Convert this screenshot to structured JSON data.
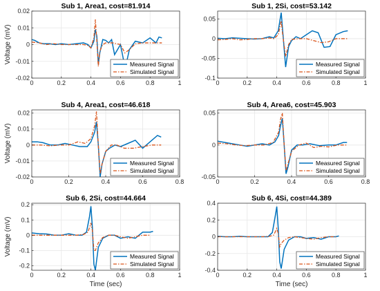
{
  "figure": {
    "xlabel": "Time (sec)",
    "ylabel": "Voltage (mV)"
  },
  "colors": {
    "measured": "#0072BD",
    "simulated": "#D95319",
    "grid": "#e6e6e6",
    "axis": "#262626"
  },
  "chart_data": [
    {
      "type": "line",
      "title": "Sub 1, Area1, cost=81.914",
      "ylabel": "Voltage (mV)",
      "xlabel": "",
      "xlim": [
        0,
        1
      ],
      "ylim": [
        -0.02,
        0.02
      ],
      "xticks": [
        "0",
        "0.2",
        "0.4",
        "0.6",
        "0.8",
        "1"
      ],
      "yticks": [
        "-0.02",
        "-0.01",
        "0",
        "0.01",
        "0.02"
      ],
      "legend": {
        "location": "bottom-right",
        "entries": [
          "Measured Signal",
          "Simulated Signal"
        ]
      },
      "grid": true,
      "series": [
        {
          "name": "Measured Signal",
          "style": "solid",
          "x": [
            0,
            0.02,
            0.05,
            0.08,
            0.12,
            0.16,
            0.2,
            0.25,
            0.3,
            0.35,
            0.38,
            0.4,
            0.42,
            0.43,
            0.44,
            0.45,
            0.46,
            0.48,
            0.5,
            0.52,
            0.54,
            0.56,
            0.58,
            0.6,
            0.62,
            0.64,
            0.66,
            0.7,
            0.75,
            0.8,
            0.84,
            0.86,
            0.88
          ],
          "y": [
            0.003,
            0.0025,
            0.001,
            0.0005,
            0.0005,
            0.0,
            0.0005,
            0.0,
            0.0005,
            0.001,
            0.0,
            -0.002,
            0.002,
            0.009,
            0.005,
            -0.012,
            -0.005,
            0.003,
            0.0025,
            0.001,
            0.003,
            -0.006,
            -0.003,
            0.0,
            -0.009,
            -0.011,
            -0.003,
            0.002,
            0.001,
            0.004,
            0.001,
            0.0045,
            0.004
          ]
        },
        {
          "name": "Simulated Signal",
          "style": "dashdot",
          "x": [
            0,
            0.05,
            0.1,
            0.15,
            0.2,
            0.25,
            0.3,
            0.35,
            0.38,
            0.4,
            0.42,
            0.43,
            0.44,
            0.45,
            0.46,
            0.48,
            0.5,
            0.55,
            0.6,
            0.63,
            0.66,
            0.7,
            0.75,
            0.8,
            0.85,
            0.88
          ],
          "y": [
            0.0015,
            0.001,
            0.0,
            0.0005,
            0.0,
            0.0,
            0.0,
            0.0,
            -0.0005,
            -0.002,
            0.004,
            0.015,
            0.002,
            -0.013,
            -0.004,
            0.0,
            0.001,
            0.001,
            0.0,
            -0.005,
            -0.003,
            0.0005,
            0.001,
            0.001,
            0.001,
            0.001
          ]
        }
      ]
    },
    {
      "type": "line",
      "title": "Sub 1, 2Si, cost=53.142",
      "ylabel": "",
      "xlabel": "",
      "xlim": [
        0,
        1
      ],
      "ylim": [
        -0.1,
        0.07
      ],
      "xticks": [
        "0",
        "0.2",
        "0.4",
        "0.6",
        "0.8",
        "1"
      ],
      "yticks": [
        "-0.1",
        "-0.05",
        "0",
        "0.05"
      ],
      "legend": {
        "location": "bottom-right",
        "entries": [
          "Measured Signal",
          "Simulated Signal"
        ]
      },
      "grid": true,
      "series": [
        {
          "name": "Measured Signal",
          "style": "solid",
          "x": [
            0,
            0.05,
            0.1,
            0.15,
            0.2,
            0.25,
            0.3,
            0.35,
            0.38,
            0.41,
            0.43,
            0.44,
            0.46,
            0.48,
            0.5,
            0.53,
            0.56,
            0.6,
            0.64,
            0.68,
            0.72,
            0.76,
            0.8,
            0.85,
            0.88
          ],
          "y": [
            0.001,
            0.0,
            0.002,
            0.001,
            0.0,
            -0.001,
            0.0,
            0.005,
            0.002,
            0.02,
            0.066,
            0.02,
            -0.072,
            -0.02,
            -0.005,
            0.005,
            0.0,
            0.01,
            0.02,
            0.015,
            -0.022,
            -0.02,
            0.01,
            0.018,
            0.02
          ]
        },
        {
          "name": "Simulated Signal",
          "style": "dashdot",
          "x": [
            0,
            0.05,
            0.1,
            0.15,
            0.2,
            0.25,
            0.3,
            0.35,
            0.38,
            0.41,
            0.43,
            0.44,
            0.46,
            0.48,
            0.5,
            0.55,
            0.6,
            0.65,
            0.7,
            0.75,
            0.8,
            0.85,
            0.88
          ],
          "y": [
            -0.003,
            -0.002,
            0.0,
            -0.003,
            -0.002,
            0.0,
            0.0,
            0.002,
            0.0,
            0.01,
            0.045,
            0.01,
            -0.045,
            -0.015,
            -0.002,
            0.0,
            0.0,
            -0.005,
            -0.01,
            -0.008,
            0.0,
            0.0,
            0.0
          ]
        }
      ]
    },
    {
      "type": "line",
      "title": "Sub 4, Area1, cost=46.618",
      "ylabel": "Voltage (mV)",
      "xlabel": "",
      "xlim": [
        0,
        0.8
      ],
      "ylim": [
        -0.02,
        0.022
      ],
      "xticks": [
        "0",
        "0.2",
        "0.4",
        "0.6",
        "0.8"
      ],
      "yticks": [
        "-0.02",
        "-0.01",
        "0",
        "0.01",
        "0.02"
      ],
      "legend": {
        "location": "bottom-right",
        "entries": [
          "Measured Signal",
          "Simulated Signal"
        ]
      },
      "grid": true,
      "series": [
        {
          "name": "Measured Signal",
          "style": "solid",
          "x": [
            0,
            0.03,
            0.06,
            0.1,
            0.14,
            0.18,
            0.22,
            0.26,
            0.3,
            0.32,
            0.34,
            0.35,
            0.36,
            0.37,
            0.38,
            0.4,
            0.42,
            0.45,
            0.48,
            0.52,
            0.56,
            0.6,
            0.64,
            0.68,
            0.7
          ],
          "y": [
            0.002,
            0.002,
            0.0015,
            0.0,
            0.0,
            0.001,
            0.0,
            -0.001,
            -0.001,
            0.002,
            0.008,
            0.0145,
            0.0,
            -0.02,
            -0.012,
            -0.004,
            -0.002,
            0.0,
            -0.001,
            0.001,
            0.003,
            -0.002,
            0.002,
            0.006,
            0.005
          ]
        },
        {
          "name": "Simulated Signal",
          "style": "dashdot",
          "x": [
            0,
            0.05,
            0.1,
            0.15,
            0.2,
            0.25,
            0.29,
            0.32,
            0.34,
            0.35,
            0.36,
            0.37,
            0.38,
            0.4,
            0.43,
            0.46,
            0.5,
            0.55,
            0.6,
            0.65,
            0.7
          ],
          "y": [
            0.0,
            0.0,
            -0.0005,
            0.0,
            0.0,
            0.002,
            0.001,
            0.004,
            0.012,
            0.021,
            0.0,
            -0.018,
            -0.012,
            -0.004,
            0.0,
            0.0,
            -0.002,
            -0.002,
            -0.001,
            0.0,
            0.0
          ]
        }
      ]
    },
    {
      "type": "line",
      "title": "Sub 4, Area6, cost=45.903",
      "ylabel": "",
      "xlabel": "",
      "xlim": [
        0,
        0.8
      ],
      "ylim": [
        -0.05,
        0.055
      ],
      "xticks": [
        "0",
        "0.2",
        "0.4",
        "0.6",
        "0.8"
      ],
      "yticks": [
        "-0.05",
        "0",
        "0.05"
      ],
      "legend": {
        "location": "bottom-right",
        "entries": [
          "Measured Signal",
          "Simulated Signal"
        ]
      },
      "grid": true,
      "series": [
        {
          "name": "Measured Signal",
          "style": "solid",
          "x": [
            0,
            0.04,
            0.08,
            0.12,
            0.16,
            0.2,
            0.24,
            0.28,
            0.31,
            0.33,
            0.34,
            0.35,
            0.36,
            0.37,
            0.38,
            0.4,
            0.43,
            0.46,
            0.5,
            0.55,
            0.6,
            0.64,
            0.68,
            0.7
          ],
          "y": [
            0.006,
            0.004,
            0.002,
            0.0,
            -0.002,
            0.0,
            0.002,
            0.0,
            0.005,
            0.015,
            0.03,
            0.042,
            0.0,
            -0.045,
            -0.035,
            -0.008,
            0.0,
            0.0,
            0.002,
            -0.001,
            0.0,
            0.0,
            0.004,
            0.004
          ]
        },
        {
          "name": "Simulated Signal",
          "style": "dashdot",
          "x": [
            0,
            0.05,
            0.1,
            0.15,
            0.2,
            0.25,
            0.3,
            0.33,
            0.34,
            0.35,
            0.36,
            0.37,
            0.38,
            0.4,
            0.44,
            0.48,
            0.52,
            0.56,
            0.6,
            0.65,
            0.7
          ],
          "y": [
            0.003,
            0.002,
            0.0,
            -0.001,
            0.0,
            0.0,
            0.004,
            0.02,
            0.04,
            0.05,
            0.0,
            -0.04,
            -0.03,
            -0.01,
            0.0,
            0.003,
            -0.004,
            -0.002,
            -0.003,
            0.0,
            0.0
          ]
        }
      ]
    },
    {
      "type": "line",
      "title": "Sub 6, 2Si, cost=44.664",
      "ylabel": "Voltage (mV)",
      "xlabel": "Time (sec)",
      "xlim": [
        0,
        1
      ],
      "ylim": [
        -0.23,
        0.21
      ],
      "xticks": [
        "0",
        "0.2",
        "0.4",
        "0.6",
        "0.8",
        "1"
      ],
      "yticks": [
        "-0.2",
        "-0.1",
        "0",
        "0.1",
        "0.2"
      ],
      "legend": {
        "location": "bottom-right",
        "entries": [
          "Measured Signal",
          "Simulated Signal"
        ]
      },
      "grid": true,
      "series": [
        {
          "name": "Measured Signal",
          "style": "solid",
          "x": [
            0,
            0.05,
            0.1,
            0.15,
            0.2,
            0.25,
            0.3,
            0.34,
            0.37,
            0.39,
            0.4,
            0.41,
            0.42,
            0.43,
            0.45,
            0.48,
            0.52,
            0.56,
            0.6,
            0.65,
            0.7,
            0.75,
            0.8,
            0.82
          ],
          "y": [
            0.015,
            0.01,
            0.008,
            0.0,
            0.0,
            0.01,
            0.0,
            0.0,
            0.02,
            0.12,
            0.19,
            0.05,
            -0.19,
            -0.23,
            -0.08,
            -0.02,
            0.0,
            0.0,
            -0.02,
            -0.01,
            -0.02,
            0.02,
            0.02,
            0.025
          ]
        },
        {
          "name": "Simulated Signal",
          "style": "dashdot",
          "x": [
            0,
            0.05,
            0.1,
            0.15,
            0.2,
            0.25,
            0.3,
            0.35,
            0.38,
            0.4,
            0.41,
            0.42,
            0.43,
            0.45,
            0.48,
            0.52,
            0.56,
            0.6,
            0.65,
            0.7,
            0.75,
            0.8
          ],
          "y": [
            0.0,
            0.0,
            0.0,
            0.0,
            0.0,
            0.0,
            0.0,
            0.005,
            0.02,
            0.08,
            0.03,
            -0.1,
            -0.1,
            -0.05,
            -0.015,
            0.0,
            0.0,
            -0.01,
            -0.02,
            -0.01,
            0.0,
            0.0
          ]
        }
      ]
    },
    {
      "type": "line",
      "title": "Sub 6, 4Si, cost=44.389",
      "ylabel": "",
      "xlabel": "Time (sec)",
      "xlim": [
        0,
        1
      ],
      "ylim": [
        -0.4,
        0.4
      ],
      "xticks": [
        "0",
        "0.2",
        "0.4",
        "0.6",
        "0.8",
        "1"
      ],
      "yticks": [
        "-0.4",
        "-0.2",
        "0",
        "0.2",
        "0.4"
      ],
      "legend": {
        "location": "bottom-right",
        "entries": [
          "Measured Signal",
          "Simulated Signal"
        ]
      },
      "grid": true,
      "series": [
        {
          "name": "Measured Signal",
          "style": "solid",
          "x": [
            0,
            0.05,
            0.1,
            0.15,
            0.2,
            0.25,
            0.3,
            0.34,
            0.37,
            0.39,
            0.4,
            0.41,
            0.42,
            0.43,
            0.45,
            0.48,
            0.52,
            0.56,
            0.6,
            0.65,
            0.7,
            0.75,
            0.8,
            0.82
          ],
          "y": [
            0.005,
            0.0,
            0.0,
            0.005,
            0.0,
            0.0,
            0.0,
            0.0,
            0.05,
            0.25,
            0.36,
            0.1,
            -0.3,
            -0.38,
            -0.15,
            -0.04,
            0.0,
            0.0,
            -0.02,
            -0.01,
            -0.03,
            0.0,
            0.0,
            0.01
          ]
        },
        {
          "name": "Simulated Signal",
          "style": "dashdot",
          "x": [
            0,
            0.05,
            0.1,
            0.15,
            0.2,
            0.25,
            0.3,
            0.35,
            0.38,
            0.4,
            0.41,
            0.42,
            0.43,
            0.45,
            0.48,
            0.52,
            0.56,
            0.6,
            0.65,
            0.7,
            0.75,
            0.8
          ],
          "y": [
            0.0,
            0.0,
            0.0,
            0.0,
            0.0,
            0.0,
            0.0,
            0.005,
            0.02,
            0.1,
            0.04,
            -0.12,
            -0.08,
            -0.04,
            -0.01,
            0.0,
            -0.01,
            -0.02,
            -0.03,
            -0.01,
            0.0,
            0.0
          ]
        }
      ]
    }
  ]
}
